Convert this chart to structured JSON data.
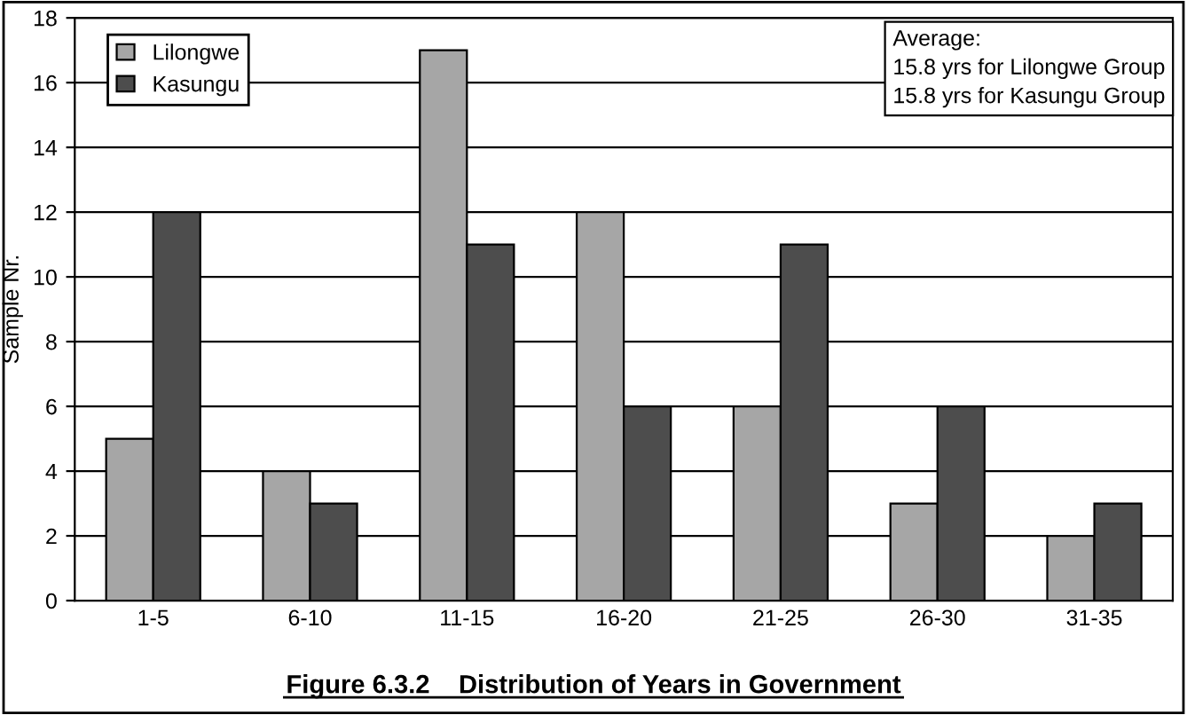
{
  "chart_data": {
    "type": "bar",
    "title": "Figure 6.3.2    Distribution of Years in Government",
    "ylabel": "Sample Nr.",
    "categories": [
      "1-5",
      "6-10",
      "11-15",
      "16-20",
      "21-25",
      "26-30",
      "31-35"
    ],
    "series": [
      {
        "name": "Lilongwe",
        "color": "#a6a6a6",
        "values": [
          5,
          4,
          17,
          12,
          6,
          3,
          2
        ]
      },
      {
        "name": "Kasungu",
        "color": "#4d4d4d",
        "values": [
          12,
          3,
          11,
          6,
          11,
          6,
          3
        ]
      }
    ],
    "ylim": [
      0,
      18
    ],
    "yticks": [
      0,
      2,
      4,
      6,
      8,
      10,
      12,
      14,
      16,
      18
    ],
    "grid": "y",
    "legend": "top left",
    "annotations": [
      "Average:\n15.8 yrs for Lilongwe Group\n15.8 yrs for Kasungu Group"
    ]
  }
}
